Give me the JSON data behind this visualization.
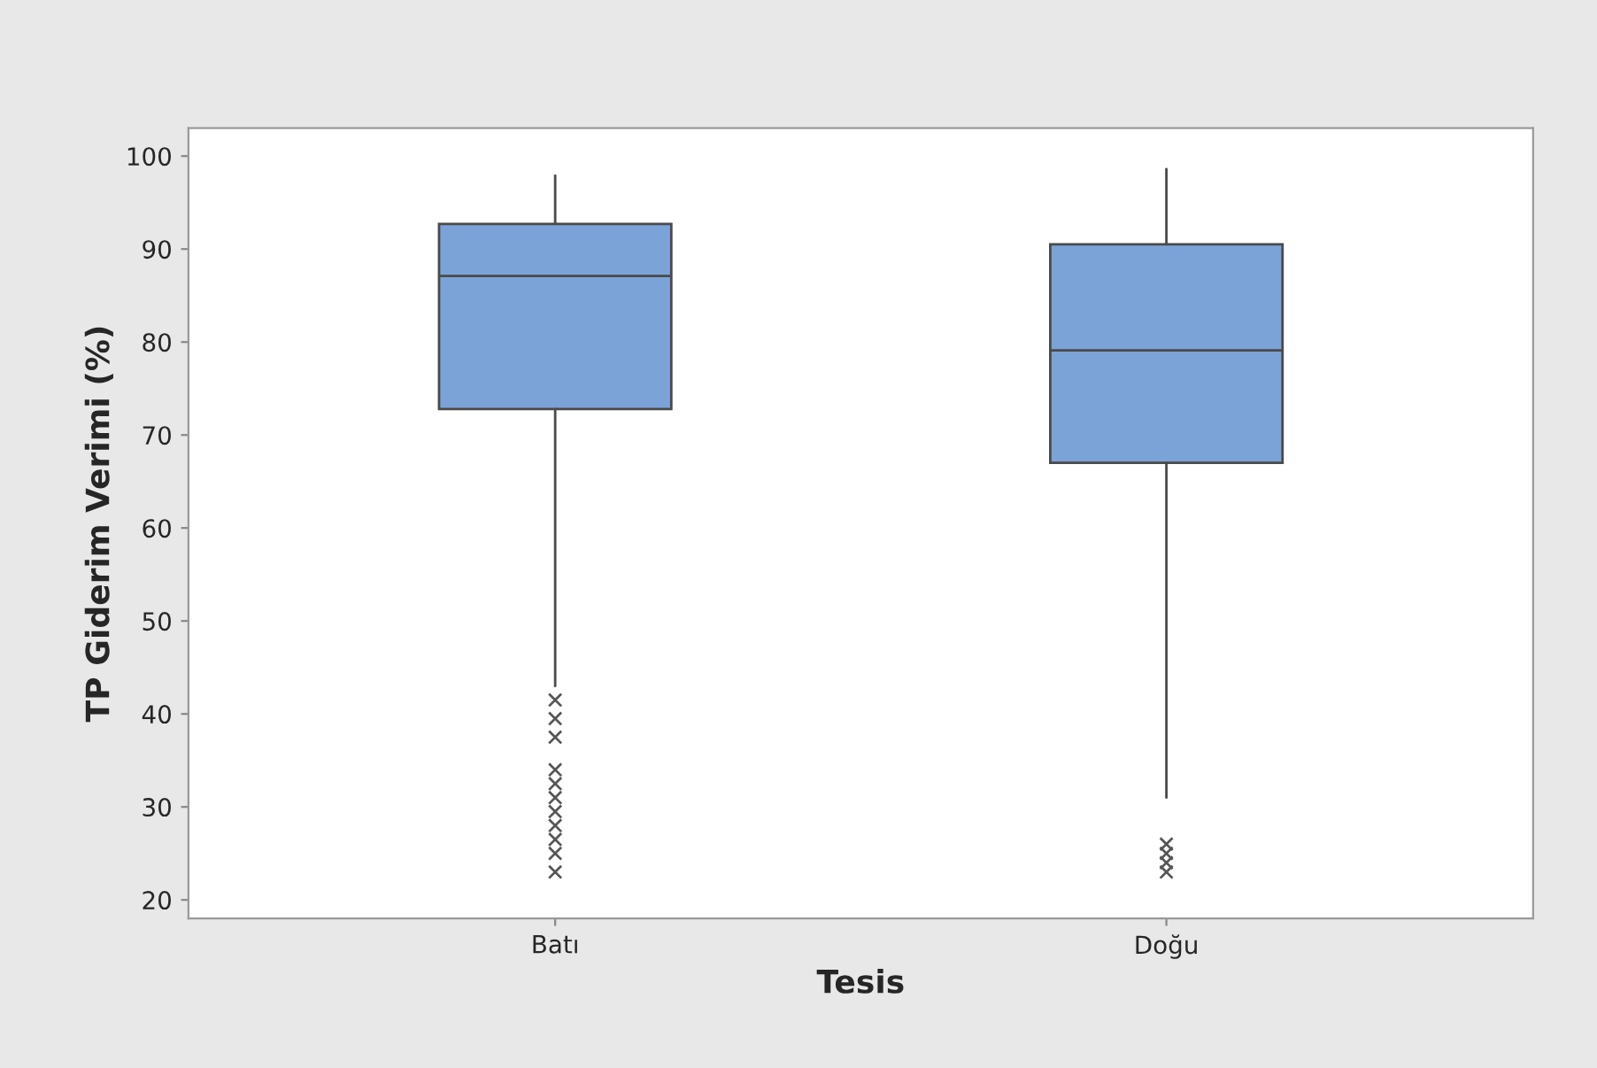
{
  "chart_data": {
    "type": "box",
    "xlabel": "Tesis",
    "ylabel": "TP Giderim Verimi (%)",
    "categories": [
      "Batı",
      "Doğu"
    ],
    "boxes": [
      {
        "low": 43,
        "q1": 72.8,
        "median": 87.1,
        "q3": 92.7,
        "high": 97.9,
        "outliers": [
          41.5,
          39.5,
          37.5,
          34,
          32.5,
          31,
          29.5,
          28,
          26.5,
          25,
          23
        ]
      },
      {
        "low": 31,
        "q1": 67,
        "median": 79.1,
        "q3": 90.5,
        "high": 98.6,
        "outliers": [
          26,
          25,
          24,
          23
        ]
      }
    ],
    "color": "#7ba3d8",
    "ylim": [
      18,
      103
    ],
    "yticks": [
      20,
      30,
      40,
      50,
      60,
      70,
      80,
      90,
      100
    ],
    "grid": false,
    "marker": "cross"
  }
}
